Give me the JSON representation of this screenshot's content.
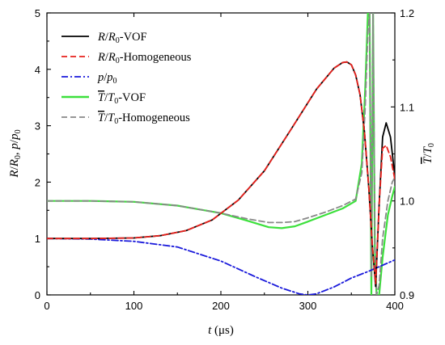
{
  "chart_data": {
    "type": "line",
    "xlabel": "t (μs)",
    "ylabel_left": "R/R0, p/p0",
    "ylabel_right": "T̄/T0",
    "xlim": [
      0,
      400
    ],
    "ylim_left": [
      0,
      5
    ],
    "ylim_right": [
      0.9,
      1.2
    ],
    "xticks": [
      "0",
      "100",
      "200",
      "300",
      "400"
    ],
    "yticks_left": [
      "0",
      "1",
      "2",
      "3",
      "4",
      "5"
    ],
    "yticks_right": [
      "0.9",
      "1.0",
      "1.1",
      "1.2"
    ],
    "grid": false,
    "legend_position": "top-left",
    "series": [
      {
        "name": "R/R0-VOF",
        "axis": "left",
        "color": "#000000",
        "style": "solid",
        "x": [
          0,
          50,
          100,
          130,
          160,
          190,
          220,
          250,
          280,
          310,
          330,
          340,
          345,
          350,
          355,
          360,
          365,
          370,
          374,
          378,
          382,
          386,
          390,
          395,
          400
        ],
        "y": [
          1.0,
          1.0,
          1.01,
          1.05,
          1.14,
          1.33,
          1.68,
          2.2,
          2.92,
          3.65,
          4.02,
          4.12,
          4.13,
          4.08,
          3.9,
          3.55,
          2.9,
          1.9,
          0.9,
          0.15,
          1.6,
          2.8,
          3.05,
          2.8,
          2.1
        ]
      },
      {
        "name": "R/R0-Homogeneous",
        "axis": "left",
        "color": "#e8211c",
        "style": "dash",
        "x": [
          0,
          50,
          100,
          130,
          160,
          190,
          220,
          250,
          280,
          310,
          330,
          340,
          345,
          350,
          355,
          360,
          365,
          370,
          374,
          378,
          382,
          386,
          390,
          395,
          400
        ],
        "y": [
          1.0,
          1.0,
          1.01,
          1.05,
          1.14,
          1.33,
          1.68,
          2.2,
          2.92,
          3.65,
          4.02,
          4.12,
          4.13,
          4.08,
          3.9,
          3.55,
          2.9,
          1.9,
          0.9,
          0.2,
          1.6,
          2.6,
          2.65,
          2.45,
          2.05
        ]
      },
      {
        "name": "p/p0",
        "axis": "left",
        "color": "#1a1adb",
        "style": "dashdot",
        "x": [
          0,
          50,
          100,
          150,
          200,
          240,
          270,
          290,
          300,
          310,
          330,
          350,
          370,
          400
        ],
        "y": [
          1.0,
          0.99,
          0.95,
          0.85,
          0.6,
          0.32,
          0.12,
          0.02,
          0.0,
          0.02,
          0.14,
          0.3,
          0.42,
          0.62
        ]
      },
      {
        "name": "T̄/T0-VOF",
        "axis": "right",
        "color": "#3ce03c",
        "style": "solid",
        "x": [
          0,
          50,
          100,
          150,
          200,
          230,
          255,
          270,
          285,
          300,
          320,
          340,
          355,
          362,
          366,
          369,
          371,
          373,
          375,
          377,
          379,
          382,
          386,
          392,
          397,
          400
        ],
        "y": [
          1.0,
          1.0,
          0.999,
          0.995,
          0.987,
          0.979,
          0.972,
          0.971,
          0.973,
          0.978,
          0.985,
          0.992,
          1.0,
          1.04,
          1.12,
          1.2,
          1.2,
          0.9,
          1.2,
          0.95,
          0.9,
          0.9,
          0.94,
          0.985,
          1.005,
          1.015
        ]
      },
      {
        "name": "T̄/T0-Homogeneous",
        "axis": "right",
        "color": "#888888",
        "style": "dash",
        "x": [
          0,
          50,
          100,
          150,
          200,
          230,
          255,
          270,
          285,
          300,
          320,
          340,
          355,
          362,
          366,
          369,
          371,
          373,
          375,
          377,
          379,
          382,
          386,
          392,
          397,
          400
        ],
        "y": [
          1.0,
          1.0,
          0.999,
          0.995,
          0.987,
          0.981,
          0.977,
          0.977,
          0.978,
          0.982,
          0.988,
          0.995,
          1.002,
          1.03,
          1.1,
          1.18,
          1.2,
          0.92,
          1.2,
          0.96,
          0.9,
          0.91,
          0.96,
          1.0,
          1.02,
          1.025
        ]
      }
    ]
  }
}
